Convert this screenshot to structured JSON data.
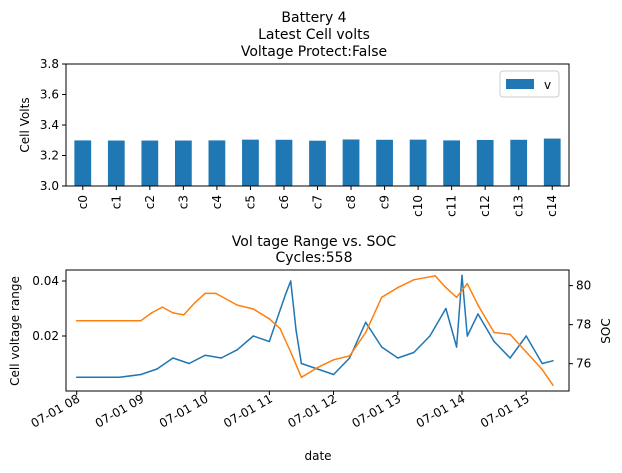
{
  "chart_data": [
    {
      "type": "bar",
      "title_lines": [
        "Battery 4",
        "Latest Cell volts",
        "Voltage Protect:False"
      ],
      "xlabel": "",
      "ylabel": "Cell Volts",
      "categories": [
        "c0",
        "c1",
        "c2",
        "c3",
        "c4",
        "c5",
        "c6",
        "c7",
        "c8",
        "c9",
        "c10",
        "c11",
        "c12",
        "c13",
        "c14"
      ],
      "series": [
        {
          "name": "v",
          "color": "#1f77b4",
          "values": [
            3.299,
            3.298,
            3.298,
            3.298,
            3.299,
            3.304,
            3.303,
            3.297,
            3.305,
            3.303,
            3.304,
            3.299,
            3.302,
            3.303,
            3.311
          ]
        }
      ],
      "ylim": [
        3.0,
        3.8
      ],
      "yticks": [
        "3.0",
        "3.2",
        "3.4",
        "3.6",
        "3.8"
      ],
      "legend": "upper-right",
      "grid": false
    },
    {
      "type": "line",
      "title_lines": [
        "Vol tage Range vs. SOC",
        "Cycles:558"
      ],
      "xlabel": "date",
      "ylabel": "Cell voltage range",
      "ylabel_right": "SOC",
      "xlim": [
        "07-01 07:50",
        "07-01 15:40"
      ],
      "xticks": [
        "07-01 08",
        "07-01 09",
        "07-01 10",
        "07-01 11",
        "07-01 12",
        "07-01 13",
        "07-01 14",
        "07-01 15"
      ],
      "ylim": [
        0.0,
        0.044
      ],
      "yticks": [
        "0.02",
        "0.04"
      ],
      "ylim_right": [
        74.6,
        80.8
      ],
      "yticks_right": [
        "76",
        "78",
        "80"
      ],
      "grid": false,
      "series": [
        {
          "axis": "left",
          "color": "#1f77b4",
          "x": [
            "07-01 08:00",
            "07-01 08:20",
            "07-01 08:40",
            "07-01 09:00",
            "07-01 09:15",
            "07-01 09:30",
            "07-01 09:45",
            "07-01 10:00",
            "07-01 10:15",
            "07-01 10:30",
            "07-01 10:45",
            "07-01 11:00",
            "07-01 11:15",
            "07-01 11:20",
            "07-01 11:25",
            "07-01 11:30",
            "07-01 11:45",
            "07-01 12:00",
            "07-01 12:15",
            "07-01 12:30",
            "07-01 12:45",
            "07-01 13:00",
            "07-01 13:15",
            "07-01 13:30",
            "07-01 13:45",
            "07-01 13:55",
            "07-01 14:00",
            "07-01 14:05",
            "07-01 14:15",
            "07-01 14:30",
            "07-01 14:45",
            "07-01 15:00",
            "07-01 15:15",
            "07-01 15:25"
          ],
          "y": [
            0.005,
            0.005,
            0.005,
            0.006,
            0.008,
            0.012,
            0.01,
            0.013,
            0.012,
            0.015,
            0.02,
            0.018,
            0.035,
            0.04,
            0.022,
            0.01,
            0.008,
            0.006,
            0.012,
            0.025,
            0.016,
            0.012,
            0.014,
            0.02,
            0.03,
            0.016,
            0.042,
            0.02,
            0.028,
            0.018,
            0.012,
            0.02,
            0.01,
            0.011
          ]
        },
        {
          "axis": "right",
          "color": "#ff7f0e",
          "x": [
            "07-01 08:00",
            "07-01 08:30",
            "07-01 09:00",
            "07-01 09:10",
            "07-01 09:20",
            "07-01 09:30",
            "07-01 09:40",
            "07-01 09:50",
            "07-01 10:00",
            "07-01 10:10",
            "07-01 10:30",
            "07-01 10:45",
            "07-01 11:00",
            "07-01 11:10",
            "07-01 11:20",
            "07-01 11:30",
            "07-01 11:45",
            "07-01 12:00",
            "07-01 12:15",
            "07-01 12:30",
            "07-01 12:45",
            "07-01 13:00",
            "07-01 13:15",
            "07-01 13:25",
            "07-01 13:35",
            "07-01 13:45",
            "07-01 13:55",
            "07-01 14:05",
            "07-01 14:15",
            "07-01 14:30",
            "07-01 14:45",
            "07-01 15:00",
            "07-01 15:15",
            "07-01 15:25"
          ],
          "y": [
            78.2,
            78.2,
            78.2,
            78.6,
            78.9,
            78.6,
            78.5,
            79.1,
            79.6,
            79.6,
            79.0,
            78.8,
            78.3,
            77.8,
            76.6,
            75.3,
            75.8,
            76.2,
            76.4,
            77.6,
            79.4,
            79.9,
            80.3,
            80.4,
            80.5,
            79.9,
            79.4,
            80.1,
            79.0,
            77.6,
            77.5,
            76.6,
            75.7,
            74.9
          ]
        }
      ]
    }
  ]
}
